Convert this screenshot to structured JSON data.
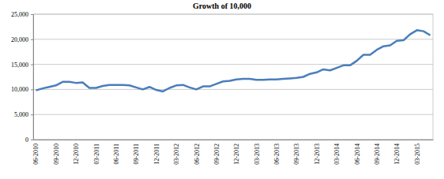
{
  "chart_data": {
    "type": "line",
    "title": "Growth of 10,000",
    "categories": [
      "06-2010",
      null,
      null,
      "09-2010",
      null,
      null,
      "12-2010",
      null,
      null,
      "03-2011",
      null,
      null,
      "06-2011",
      null,
      null,
      "09-2011",
      null,
      null,
      "12-2011",
      null,
      null,
      "03-2012",
      null,
      null,
      "06-2012",
      null,
      null,
      "09-2012",
      null,
      null,
      "12-2012",
      null,
      null,
      "03-2013",
      null,
      null,
      "06-2013",
      null,
      null,
      "09-2013",
      null,
      null,
      "12-2013",
      null,
      null,
      "03-2014",
      null,
      null,
      "06-2014",
      null,
      null,
      "09-2014",
      null,
      null,
      "12-2014",
      null,
      null,
      "03-2015",
      null,
      null
    ],
    "values": [
      9800,
      10200,
      10500,
      10800,
      11500,
      11500,
      11300,
      11400,
      10300,
      10300,
      10700,
      10900,
      10900,
      10900,
      10800,
      10400,
      10000,
      10500,
      9900,
      9600,
      10300,
      10800,
      10900,
      10400,
      10000,
      10600,
      10600,
      11100,
      11600,
      11700,
      12000,
      12100,
      12100,
      11900,
      11900,
      12000,
      12000,
      12100,
      12200,
      12300,
      12500,
      13100,
      13400,
      14000,
      13800,
      14300,
      14800,
      14800,
      15700,
      16900,
      16900,
      17900,
      18600,
      18800,
      19700,
      19800,
      21000,
      21800,
      21600,
      20800
    ],
    "color": "#4a7ebb",
    "ylim": [
      0,
      25000
    ],
    "yticks": [
      0,
      {
        "value": 5000,
        "label": "5,000"
      },
      {
        "value": 10000,
        "label": "10,000"
      },
      {
        "value": 15000,
        "label": "15,000"
      },
      {
        "value": 20000,
        "label": "20,000"
      },
      {
        "value": 25000,
        "label": "25,000"
      }
    ],
    "grid": true
  }
}
